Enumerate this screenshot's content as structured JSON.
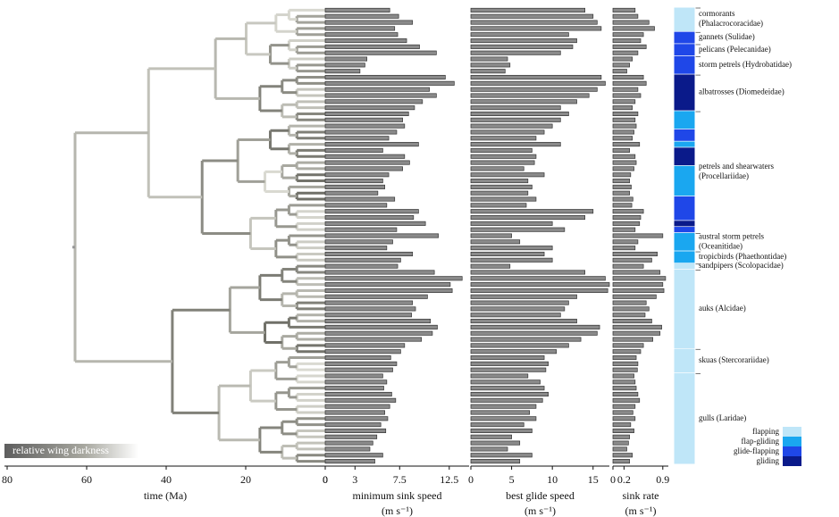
{
  "chart_data": {
    "type": "bar",
    "time_axis": {
      "xlabel": "time (Ma)",
      "xlim": [
        80,
        0
      ],
      "xticks": [
        80,
        60,
        40,
        20,
        0
      ]
    },
    "wing_darkness_label": "relative wing darkness",
    "panels": [
      {
        "xlabel": "minimum sink speed",
        "unit": "(m s⁻¹)",
        "xlim": [
          0,
          14.5
        ],
        "xticks": [
          0,
          3,
          7.5,
          12.5
        ],
        "values": [
          6.5,
          7.4,
          8.8,
          7.0,
          7.3,
          8.2,
          9.5,
          11.2,
          4.2,
          4.0,
          3.5,
          12.1,
          13.0,
          10.5,
          11.2,
          9.8,
          9.0,
          8.4,
          7.8,
          8.0,
          7.2,
          6.4,
          9.4,
          5.8,
          8.0,
          8.5,
          7.8,
          6.4,
          5.8,
          6.0,
          5.3,
          7.0,
          6.2,
          9.4,
          8.9,
          10.1,
          7.2,
          11.4,
          6.8,
          6.2,
          8.8,
          7.6,
          7.3,
          11.0,
          13.8,
          12.6,
          12.8,
          10.3,
          8.8,
          9.1,
          8.7,
          10.6,
          11.3,
          10.8,
          9.7,
          8.0,
          7.6,
          6.6,
          7.2,
          6.8,
          5.8,
          6.2,
          5.9,
          6.7,
          7.1,
          6.5,
          6.0,
          6.3,
          5.6,
          6.1,
          5.2,
          4.8,
          4.5,
          5.8,
          5.0
        ]
      },
      {
        "xlabel": "best glide speed",
        "unit": "(m s⁻¹)",
        "xlim": [
          0,
          17
        ],
        "xticks": [
          0,
          5,
          10,
          15
        ],
        "values": [
          14,
          15,
          15.5,
          16,
          12,
          13,
          12.5,
          11,
          4.5,
          4.8,
          4.2,
          16,
          16.5,
          15.5,
          14.5,
          13,
          11,
          12,
          11,
          10,
          9,
          8,
          11,
          7.5,
          8,
          7.8,
          6.5,
          9,
          7,
          7.5,
          7,
          8,
          6.8,
          15,
          14,
          10,
          11.5,
          5,
          6,
          10,
          9,
          10,
          4.8,
          14,
          16.5,
          17,
          16.8,
          13,
          12,
          11.5,
          11,
          13,
          15.8,
          15.5,
          13.5,
          12,
          10.5,
          9,
          9.5,
          9.2,
          7,
          8.5,
          9,
          9.5,
          8.8,
          8,
          7.2,
          8,
          6.5,
          7.5,
          5,
          6,
          4.5,
          7.5,
          6
        ]
      },
      {
        "xlabel": "sink rate",
        "unit": "(m s⁻¹)",
        "xlim": [
          0,
          1
        ],
        "xticks": [
          0,
          0.2,
          0.9
        ],
        "values": [
          0.4,
          0.45,
          0.65,
          0.75,
          0.55,
          0.5,
          0.6,
          0.45,
          0.35,
          0.3,
          0.25,
          0.55,
          0.6,
          0.45,
          0.5,
          0.4,
          0.35,
          0.45,
          0.4,
          0.42,
          0.38,
          0.35,
          0.48,
          0.3,
          0.4,
          0.42,
          0.38,
          0.32,
          0.3,
          0.33,
          0.3,
          0.36,
          0.34,
          0.55,
          0.5,
          0.48,
          0.4,
          0.9,
          0.45,
          0.4,
          0.8,
          0.7,
          0.55,
          0.85,
          0.95,
          0.9,
          0.92,
          0.78,
          0.6,
          0.65,
          0.58,
          0.7,
          0.88,
          0.85,
          0.72,
          0.55,
          0.5,
          0.42,
          0.45,
          0.44,
          0.38,
          0.4,
          0.42,
          0.45,
          0.48,
          0.4,
          0.36,
          0.4,
          0.32,
          0.38,
          0.3,
          0.28,
          0.25,
          0.35,
          0.3
        ]
      }
    ],
    "legend": [
      {
        "name": "flapping",
        "color": "#bfe6f8"
      },
      {
        "name": "flap-gliding",
        "color": "#1aa7f0"
      },
      {
        "name": "glide-flapping",
        "color": "#1f47e8"
      },
      {
        "name": "gliding",
        "color": "#0a1a8a"
      }
    ],
    "families": [
      {
        "label": [
          "cormorants",
          "(Phalacrocoracidae)"
        ],
        "segments": [
          {
            "mode": 0,
            "n": 4
          }
        ]
      },
      {
        "label": [
          "gannets (Sulidae)"
        ],
        "segments": [
          {
            "mode": 2,
            "n": 2
          }
        ]
      },
      {
        "label": [
          "pelicans (Pelecanidae)"
        ],
        "segments": [
          {
            "mode": 2,
            "n": 2
          }
        ]
      },
      {
        "label": [
          "storm petrels (Hydrobatidae)"
        ],
        "segments": [
          {
            "mode": 2,
            "n": 3
          }
        ]
      },
      {
        "label": [
          "albatrosses (Diomedeidae)"
        ],
        "segments": [
          {
            "mode": 3,
            "n": 6
          }
        ]
      },
      {
        "label": [
          "petrels and shearwaters",
          "(Procellariidae)"
        ],
        "segments": [
          {
            "mode": 1,
            "n": 3
          },
          {
            "mode": 2,
            "n": 2
          },
          {
            "mode": 1,
            "n": 1
          },
          {
            "mode": 3,
            "n": 3
          },
          {
            "mode": 1,
            "n": 5
          },
          {
            "mode": 2,
            "n": 4
          },
          {
            "mode": 3,
            "n": 1
          },
          {
            "mode": 2,
            "n": 1
          }
        ]
      },
      {
        "label": [
          "austral storm petrels",
          "(Oceanitidae)"
        ],
        "segments": [
          {
            "mode": 1,
            "n": 3
          }
        ]
      },
      {
        "label": [
          "tropicbirds (Phaethontidae)"
        ],
        "segments": [
          {
            "mode": 1,
            "n": 2
          }
        ]
      },
      {
        "label": [
          "sandpipers (Scolopacidae)"
        ],
        "segments": [
          {
            "mode": 0,
            "n": 1
          }
        ]
      },
      {
        "label": [
          "auks (Alcidae)"
        ],
        "segments": [
          {
            "mode": 0,
            "n": 13
          }
        ]
      },
      {
        "label": [
          "skuas (Stercorariidae)"
        ],
        "segments": [
          {
            "mode": 0,
            "n": 4
          }
        ]
      },
      {
        "label": [
          "gulls (Laridae)"
        ],
        "segments": [
          {
            "mode": 0,
            "n": 15
          }
        ]
      }
    ]
  }
}
